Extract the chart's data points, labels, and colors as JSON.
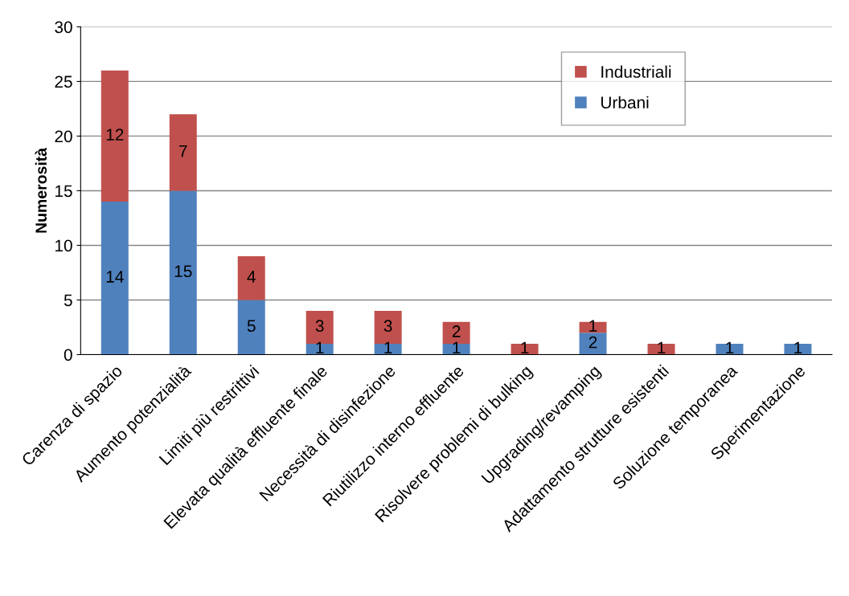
{
  "chart_data": {
    "type": "bar",
    "stacked": true,
    "ylabel": "Numerosità",
    "categories": [
      "Carenza di spazio",
      "Aumento potenzialità",
      "Limiti più restrittivi",
      "Elevata qualità effluente finale",
      "Necessità di disinfezione",
      "Riutilizzo interno effluente",
      "Risolvere problemi di bulking",
      "Upgrading/revamping",
      "Adattamento strutture esistenti",
      "Soluzione temporanea",
      "Sperimentazione"
    ],
    "series": [
      {
        "name": "Urbani",
        "color": "#4f81bd",
        "values": [
          14,
          15,
          5,
          1,
          1,
          1,
          0,
          2,
          0,
          1,
          1
        ],
        "value_labels": [
          "14",
          "15",
          "5",
          "1",
          "1",
          "1",
          null,
          "2",
          null,
          "1",
          "1"
        ]
      },
      {
        "name": "Industriali",
        "color": "#c0504d",
        "values": [
          12,
          7,
          4,
          3,
          3,
          2,
          1,
          1,
          1,
          0,
          0
        ],
        "value_labels": [
          "12",
          "7",
          "4",
          "3",
          "3",
          "2",
          "1",
          "1",
          "1",
          null,
          null
        ]
      }
    ],
    "ylim": [
      0,
      30
    ],
    "yticks": [
      0,
      5,
      10,
      15,
      20,
      25,
      30
    ],
    "grid": "y",
    "legend": "top right"
  }
}
